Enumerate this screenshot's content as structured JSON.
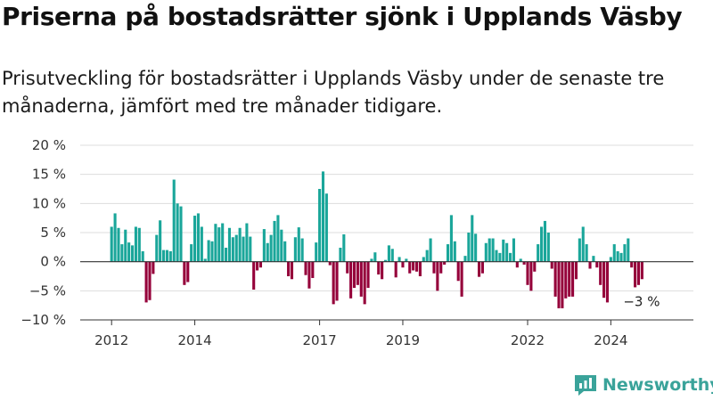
{
  "title": "Priserna på bostadsrätter sjönk i Upplands Väsby",
  "subtitle": "Prisutveckling för bostadsrätter i Upplands Väsby under de senaste tre månaderna, jämfört med tre månader tidigare.",
  "brand": "Newsworthy",
  "colors": {
    "positive": "#1aa69a",
    "negative": "#95003a",
    "grid": "#dddddd",
    "axis": "#333333"
  },
  "chart_data": {
    "type": "bar",
    "ylim": [
      -10,
      20
    ],
    "y_ticks": [
      -10,
      -5,
      0,
      5,
      10,
      15,
      20
    ],
    "y_tick_labels": [
      "−10 %",
      "−5 %",
      "0 %",
      "5 %",
      "10 %",
      "15 %",
      "20 %"
    ],
    "x_tick_labels": [
      {
        "year": 2012,
        "label": "2012"
      },
      {
        "year": 2014,
        "label": "2014"
      },
      {
        "year": 2017,
        "label": "2017"
      },
      {
        "year": 2019,
        "label": "2019"
      },
      {
        "year": 2022,
        "label": "2022"
      },
      {
        "year": 2024,
        "label": "2024"
      }
    ],
    "start": "2012-01",
    "last_label": "−3 %",
    "values": [
      6,
      8.3,
      5.8,
      3,
      5.5,
      3.3,
      2.8,
      6,
      5.8,
      1.8,
      -7,
      -6.6,
      -2.1,
      4.6,
      7.1,
      2,
      2,
      1.8,
      14.1,
      10,
      9.5,
      -4,
      -3.5,
      3,
      7.9,
      8.3,
      6,
      0.5,
      3.7,
      3.5,
      6.5,
      5.9,
      6.6,
      2.4,
      5.8,
      4.2,
      4.6,
      5.8,
      4.3,
      6.6,
      4.3,
      -4.8,
      -1.5,
      -1,
      5.6,
      3.2,
      4.6,
      7,
      8,
      5.5,
      3.5,
      -2.5,
      -3,
      4.2,
      5.9,
      4,
      -2.3,
      -4.6,
      -2.8,
      3.3,
      12.5,
      15.5,
      11.7,
      -0.6,
      -7.3,
      -6.7,
      2.4,
      4.7,
      -2,
      -6.3,
      -4.5,
      -4,
      -6,
      -7.3,
      -4.5,
      0.5,
      1.6,
      -2.2,
      -3,
      0.3,
      2.8,
      2.2,
      -2.7,
      0.8,
      -1,
      0.5,
      -2,
      -1.5,
      -1.7,
      -2.5,
      0.8,
      2,
      4,
      -2,
      -5,
      -2,
      -0.5,
      3,
      8,
      3.5,
      -3.3,
      -6,
      1,
      5,
      8,
      4.8,
      -2.6,
      -2,
      3.2,
      4,
      4,
      2,
      1.5,
      3.8,
      3.2,
      1.5,
      4,
      -1,
      0.5,
      -0.5,
      -4,
      -5,
      -1.7,
      3,
      6,
      7,
      5,
      -1.2,
      -6,
      -8,
      -8,
      -6.3,
      -6,
      -6,
      -3,
      4,
      6,
      3,
      -1.2,
      1,
      -1,
      -4,
      -6.2,
      -7,
      0.8,
      3,
      1.8,
      1.5,
      3,
      4,
      -1,
      -4.4,
      -4,
      -3
    ]
  }
}
